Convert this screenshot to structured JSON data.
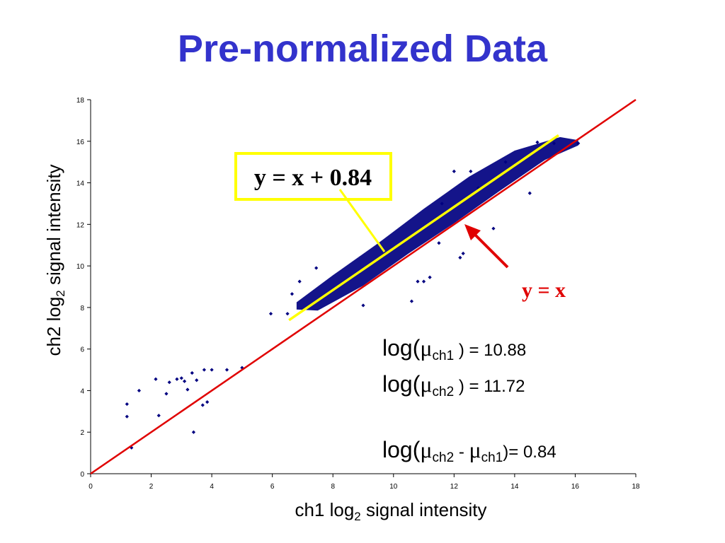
{
  "title": "Pre-normalized Data",
  "colors": {
    "title": "#3333cc",
    "points": "#000080",
    "identity": "#e00000",
    "fit": "#ffff00",
    "box": "#ffff00"
  },
  "chart_data": {
    "type": "scatter",
    "xlabel": {
      "text": "ch1 log",
      "sub": "2",
      "rest": " signal intensity"
    },
    "ylabel": {
      "text": "ch2 log",
      "sub": "2",
      "rest": " signal intensity"
    },
    "xlim": [
      0,
      18
    ],
    "ylim": [
      0,
      18
    ],
    "x_ticks": [
      "0",
      "2",
      "4",
      "6",
      "8",
      "10",
      "12",
      "14",
      "16",
      "18"
    ],
    "y_ticks": [
      "0",
      "2",
      "4",
      "6",
      "8",
      "10",
      "12",
      "14",
      "16",
      "18"
    ],
    "grid": false,
    "series": [
      {
        "marker": "diamond",
        "points": [
          [
            1.2,
            3.35
          ],
          [
            1.2,
            2.75
          ],
          [
            1.35,
            1.25
          ],
          [
            1.6,
            4.0
          ],
          [
            2.15,
            4.55
          ],
          [
            2.25,
            2.8
          ],
          [
            2.5,
            3.85
          ],
          [
            2.6,
            4.4
          ],
          [
            2.85,
            4.55
          ],
          [
            3.0,
            4.6
          ],
          [
            3.1,
            4.45
          ],
          [
            3.2,
            4.05
          ],
          [
            3.35,
            4.85
          ],
          [
            3.4,
            2.0
          ],
          [
            3.5,
            4.5
          ],
          [
            3.7,
            3.3
          ],
          [
            3.75,
            5.0
          ],
          [
            3.85,
            3.45
          ],
          [
            4.0,
            5.0
          ],
          [
            4.5,
            5.0
          ],
          [
            5.0,
            5.1
          ],
          [
            5.95,
            7.7
          ],
          [
            6.5,
            7.7
          ],
          [
            6.65,
            8.65
          ],
          [
            6.9,
            9.25
          ],
          [
            7.45,
            9.9
          ],
          [
            9.0,
            8.1
          ],
          [
            10.0,
            10.85
          ],
          [
            10.6,
            8.3
          ],
          [
            10.8,
            9.25
          ],
          [
            11.0,
            9.25
          ],
          [
            11.2,
            9.45
          ],
          [
            11.5,
            11.1
          ],
          [
            11.6,
            13.0
          ],
          [
            12.0,
            14.55
          ],
          [
            12.2,
            10.4
          ],
          [
            12.3,
            10.6
          ],
          [
            12.55,
            14.55
          ],
          [
            12.8,
            13.75
          ],
          [
            13.3,
            11.8
          ],
          [
            13.7,
            15.0
          ],
          [
            14.5,
            13.5
          ],
          [
            14.75,
            15.95
          ],
          [
            15.3,
            15.9
          ],
          [
            16.1,
            15.9
          ]
        ]
      }
    ],
    "lines": [
      {
        "label": "y = x",
        "intercept": 0,
        "x_range": [
          0,
          18
        ]
      },
      {
        "label": "y = x + 0.84",
        "intercept": 0.84,
        "x_range": [
          6.55,
          15.45
        ]
      }
    ]
  },
  "annotations": {
    "fit_label": "y = x + 0.84",
    "identity_label": "y = x"
  },
  "stats": [
    {
      "prefix": "log(",
      "mu": "μ",
      "sub": "ch1",
      "suffix": " ) =  10.88"
    },
    {
      "prefix": "log(",
      "mu": "μ",
      "sub": "ch2",
      "suffix": " ) =  11.72"
    },
    {
      "prefix": "log(",
      "mu": "μ",
      "sub": "ch2",
      "middle": "  -  ",
      "mu2": "μ",
      "sub2": "ch1",
      "suffix": ")= 0.84"
    }
  ]
}
